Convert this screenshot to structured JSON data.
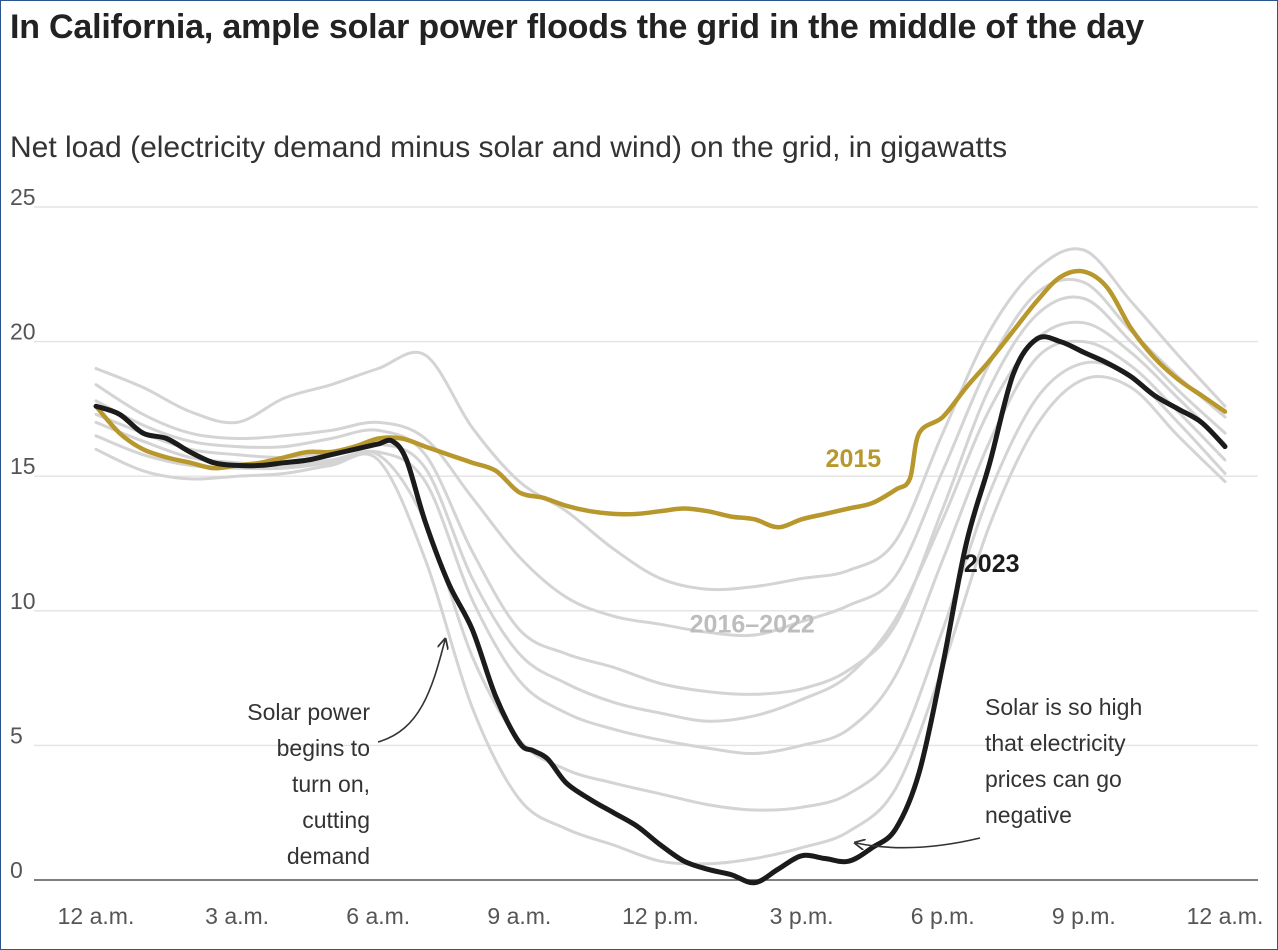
{
  "title": "In California, ample solar power floods the grid in the middle of the day",
  "subtitle": "Net load (electricity demand minus solar and wind) on the grid, in gigawatts",
  "colors": {
    "accent_2015": "#b8982d",
    "line_2023": "#1b1b1b",
    "lines_2016_2022": "#d4d4d4",
    "label_2016_2022": "#bdbdbd",
    "gridline": "#e3e3e3"
  },
  "chart_data": {
    "type": "line",
    "title": "In California, ample solar power floods the grid in the middle of the day",
    "subtitle": "Net load (electricity demand minus solar and wind) on the grid, in gigawatts",
    "ylim": [
      0,
      25
    ],
    "yticks": [
      0,
      5,
      10,
      15,
      20,
      25
    ],
    "xlim": [
      0,
      24
    ],
    "xticks": [
      {
        "value": 0,
        "label": "12 a.m."
      },
      {
        "value": 3,
        "label": "3 a.m."
      },
      {
        "value": 6,
        "label": "6 a.m."
      },
      {
        "value": 9,
        "label": "9 a.m."
      },
      {
        "value": 12,
        "label": "12 p.m."
      },
      {
        "value": 15,
        "label": "3 p.m."
      },
      {
        "value": 18,
        "label": "6 p.m."
      },
      {
        "value": 21,
        "label": "9 p.m."
      },
      {
        "value": 24,
        "label": "12 a.m."
      }
    ],
    "grid": true,
    "series_labels": {
      "s2015": "2015",
      "s2023": "2023",
      "s2016_2022": "2016–2022"
    },
    "series_2015": {
      "name": "2015",
      "x": [
        0,
        0.5,
        1,
        1.5,
        2,
        2.5,
        3,
        3.5,
        4,
        4.5,
        5,
        5.5,
        6,
        6.5,
        7,
        7.5,
        8,
        8.5,
        9,
        9.5,
        10,
        10.5,
        11,
        11.5,
        12,
        12.5,
        13,
        13.5,
        14,
        14.5,
        15,
        15.5,
        16,
        16.5,
        17,
        17.3,
        17.5,
        18,
        18.5,
        19,
        19.5,
        20,
        20.5,
        21,
        21.5,
        22,
        22.5,
        23,
        23.5,
        24
      ],
      "y": [
        17.6,
        16.6,
        16.0,
        15.7,
        15.5,
        15.3,
        15.4,
        15.5,
        15.7,
        15.9,
        15.9,
        16.1,
        16.4,
        16.4,
        16.1,
        15.8,
        15.5,
        15.2,
        14.4,
        14.2,
        13.9,
        13.7,
        13.6,
        13.6,
        13.7,
        13.8,
        13.7,
        13.5,
        13.4,
        13.1,
        13.4,
        13.6,
        13.8,
        14.0,
        14.5,
        14.9,
        16.6,
        17.2,
        18.3,
        19.3,
        20.4,
        21.5,
        22.4,
        22.6,
        22.0,
        20.5,
        19.4,
        18.6,
        18.0,
        17.4
      ]
    },
    "series_2023": {
      "name": "2023",
      "x": [
        0,
        0.5,
        1,
        1.5,
        2,
        2.5,
        3,
        3.5,
        4,
        4.5,
        5,
        5.5,
        6,
        6.3,
        6.6,
        7,
        7.5,
        8,
        8.5,
        9,
        9.3,
        9.6,
        10,
        10.5,
        11,
        11.5,
        12,
        12.5,
        13,
        13.5,
        14,
        14.5,
        15,
        15.5,
        16,
        16.5,
        17,
        17.5,
        18,
        18.5,
        19,
        19.5,
        20,
        20.5,
        21,
        21.5,
        22,
        22.5,
        23,
        23.5,
        24
      ],
      "y": [
        17.6,
        17.3,
        16.6,
        16.4,
        15.9,
        15.5,
        15.4,
        15.4,
        15.5,
        15.6,
        15.8,
        16.0,
        16.2,
        16.3,
        15.6,
        13.3,
        11.0,
        9.3,
        6.8,
        5.1,
        4.8,
        4.5,
        3.6,
        3.0,
        2.5,
        2.0,
        1.3,
        0.7,
        0.4,
        0.2,
        -0.1,
        0.4,
        0.9,
        0.8,
        0.7,
        1.2,
        1.9,
        4.0,
        8.0,
        12.5,
        15.5,
        18.8,
        20.1,
        20.0,
        19.6,
        19.2,
        18.7,
        18.0,
        17.5,
        17.0,
        16.1
      ]
    },
    "series_2016_2022": [
      {
        "x": [
          0,
          1,
          2,
          3,
          4,
          5,
          6,
          7,
          8,
          9,
          10,
          11,
          12,
          13,
          14,
          15,
          16,
          17,
          18,
          19,
          20,
          21,
          22,
          23,
          24
        ],
        "y": [
          19.0,
          18.3,
          17.4,
          17.0,
          17.9,
          18.4,
          19.0,
          19.5,
          16.8,
          14.8,
          13.7,
          12.3,
          11.2,
          10.8,
          10.9,
          11.2,
          11.5,
          12.6,
          16.6,
          20.4,
          22.7,
          23.4,
          21.5,
          19.5,
          17.6
        ]
      },
      {
        "x": [
          0,
          1,
          2,
          3,
          4,
          5,
          6,
          7,
          8,
          9,
          10,
          11,
          12,
          13,
          14,
          15,
          16,
          17,
          18,
          19,
          20,
          21,
          22,
          23,
          24
        ],
        "y": [
          18.4,
          17.3,
          16.6,
          16.4,
          16.5,
          16.7,
          17.0,
          16.4,
          14.2,
          12.0,
          10.5,
          9.8,
          9.5,
          9.2,
          9.1,
          9.6,
          10.2,
          11.3,
          15.2,
          19.2,
          21.8,
          22.2,
          20.4,
          18.7,
          17.2
        ]
      },
      {
        "x": [
          0,
          1,
          2,
          3,
          4,
          5,
          6,
          7,
          8,
          9,
          10,
          11,
          12,
          13,
          14,
          15,
          16,
          17,
          18,
          19,
          20,
          21,
          22,
          23,
          24
        ],
        "y": [
          17.8,
          16.9,
          16.3,
          16.1,
          16.1,
          16.4,
          16.7,
          15.8,
          12.2,
          9.3,
          8.4,
          7.9,
          7.3,
          7.0,
          6.9,
          7.1,
          7.8,
          9.5,
          13.8,
          18.3,
          21.0,
          21.6,
          20.0,
          18.2,
          16.6
        ]
      },
      {
        "x": [
          0,
          1,
          2,
          3,
          4,
          5,
          6,
          7,
          8,
          9,
          10,
          11,
          12,
          13,
          14,
          15,
          16,
          17,
          18,
          19,
          20,
          21,
          22,
          23,
          24
        ],
        "y": [
          17.3,
          16.6,
          16.0,
          15.8,
          15.7,
          15.9,
          16.2,
          15.3,
          11.2,
          8.4,
          7.3,
          6.6,
          6.2,
          5.9,
          6.1,
          6.7,
          7.6,
          9.7,
          13.4,
          17.5,
          20.1,
          20.7,
          19.6,
          17.9,
          16.2
        ]
      },
      {
        "x": [
          0,
          1,
          2,
          3,
          4,
          5,
          6,
          7,
          8,
          9,
          10,
          11,
          12,
          13,
          14,
          15,
          16,
          17,
          18,
          19,
          20,
          21,
          22,
          23,
          24
        ],
        "y": [
          17.0,
          16.3,
          15.7,
          15.5,
          15.4,
          15.6,
          15.9,
          14.8,
          10.4,
          7.4,
          6.2,
          5.6,
          5.2,
          4.9,
          4.7,
          5.0,
          5.6,
          7.6,
          11.9,
          16.3,
          19.4,
          20.0,
          19.1,
          17.4,
          15.6
        ]
      },
      {
        "x": [
          0,
          1,
          2,
          3,
          4,
          5,
          6,
          7,
          8,
          9,
          10,
          11,
          12,
          13,
          14,
          15,
          16,
          17,
          18,
          19,
          20,
          21,
          22,
          23,
          24
        ],
        "y": [
          16.5,
          15.8,
          15.4,
          15.3,
          15.3,
          15.5,
          15.8,
          13.3,
          8.3,
          5.2,
          4.1,
          3.6,
          3.2,
          2.8,
          2.6,
          2.7,
          3.2,
          4.8,
          9.3,
          14.4,
          17.9,
          19.2,
          18.7,
          17.0,
          15.1
        ]
      },
      {
        "x": [
          0,
          1,
          2,
          3,
          4,
          5,
          6,
          7,
          8,
          9,
          10,
          11,
          12,
          13,
          14,
          15,
          16,
          17,
          18,
          19,
          20,
          21,
          22,
          23,
          24
        ],
        "y": [
          16.0,
          15.2,
          14.9,
          15.0,
          15.1,
          15.4,
          15.6,
          11.9,
          6.4,
          3.0,
          1.9,
          1.3,
          0.7,
          0.6,
          0.8,
          1.2,
          1.8,
          3.4,
          7.9,
          13.2,
          16.9,
          18.6,
          18.3,
          16.5,
          14.8
        ]
      }
    ],
    "annotations": [
      {
        "lines": [
          "Solar power",
          "begins to",
          "turn on,",
          "cutting",
          "demand"
        ]
      },
      {
        "lines": [
          "Solar is so high",
          "that electricity",
          "prices can go",
          "negative"
        ]
      }
    ]
  }
}
